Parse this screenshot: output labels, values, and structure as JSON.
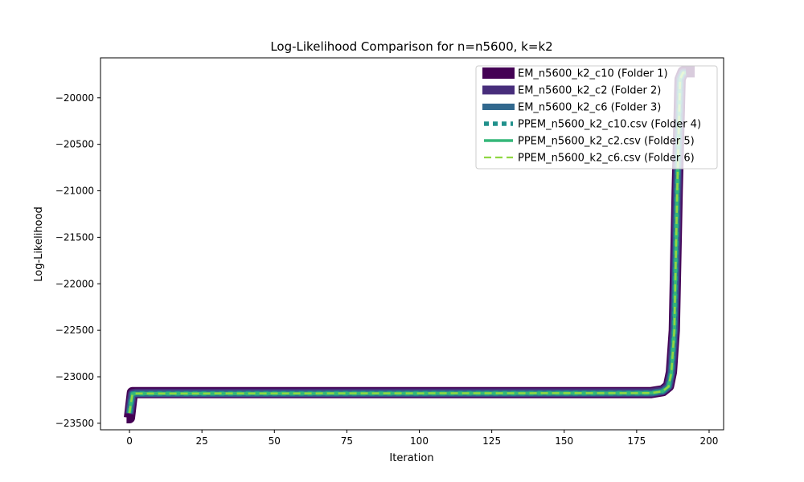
{
  "chart_data": {
    "type": "line",
    "title": "Log-Likelihood Comparison for n=n5600, k=k2",
    "xlabel": "Iteration",
    "ylabel": "Log-Likelihood",
    "xlim": [
      -10,
      205
    ],
    "ylim": [
      -23570,
      -19570
    ],
    "x_ticks": [
      0,
      25,
      50,
      75,
      100,
      125,
      150,
      175,
      200
    ],
    "x_tick_labels": [
      "0",
      "25",
      "50",
      "75",
      "100",
      "125",
      "150",
      "175",
      "200"
    ],
    "y_ticks": [
      -20000,
      -20500,
      -21000,
      -21500,
      -22000,
      -22500,
      -23000,
      -23500
    ],
    "y_tick_labels": [
      "−20000",
      "−20500",
      "−21000",
      "−21500",
      "−22000",
      "−22500",
      "−23000",
      "−23500"
    ],
    "legend_position": "top-right",
    "series": [
      {
        "name": "EM_n5600_k2_c10 (Folder 1)",
        "color": "#440154",
        "style": "solid",
        "weight": 14,
        "x": [
          -1,
          0,
          1,
          2,
          180,
          184,
          186,
          187,
          188,
          189,
          190,
          191,
          192,
          195
        ],
        "y": [
          -23440,
          -23440,
          -23170,
          -23170,
          -23170,
          -23150,
          -23100,
          -22950,
          -22500,
          -21000,
          -19800,
          -19720,
          -19720,
          -19720
        ]
      },
      {
        "name": "EM_n5600_k2_c2 (Folder 2)",
        "color": "#472d7b",
        "style": "solid",
        "weight": 11,
        "x": [
          0,
          1,
          2,
          180,
          184,
          186,
          187,
          188,
          189,
          190,
          191,
          192
        ],
        "y": [
          -23400,
          -23180,
          -23175,
          -23170,
          -23150,
          -23100,
          -22950,
          -22500,
          -21000,
          -19800,
          -19730,
          -19730
        ]
      },
      {
        "name": "EM_n5600_k2_c6 (Folder 3)",
        "color": "#31688e",
        "style": "solid",
        "weight": 8,
        "x": [
          0,
          1,
          2,
          180,
          184,
          186,
          187,
          188,
          189,
          190,
          191,
          192
        ],
        "y": [
          -23390,
          -23185,
          -23180,
          -23175,
          -23155,
          -23105,
          -22955,
          -22500,
          -21000,
          -19800,
          -19730,
          -19730
        ]
      },
      {
        "name": "PPEM_n5600_k2_c10.csv (Folder 4)",
        "color": "#21918c",
        "style": "dotted",
        "weight": 6,
        "x": [
          0,
          1,
          2,
          180,
          184,
          186,
          187,
          188,
          189,
          190,
          191,
          192
        ],
        "y": [
          -23390,
          -23185,
          -23180,
          -23175,
          -23155,
          -23105,
          -22955,
          -22500,
          -21000,
          -19800,
          -19730,
          -19730
        ]
      },
      {
        "name": "PPEM_n5600_k2_c2.csv (Folder 5)",
        "color": "#35b779",
        "style": "solid",
        "weight": 4,
        "x": [
          0,
          1,
          2,
          180,
          184,
          186,
          187,
          188,
          189,
          190,
          191,
          192
        ],
        "y": [
          -23390,
          -23185,
          -23180,
          -23175,
          -23155,
          -23105,
          -22955,
          -22500,
          -21000,
          -19800,
          -19730,
          -19730
        ]
      },
      {
        "name": "PPEM_n5600_k2_c6.csv (Folder 6)",
        "color": "#90d743",
        "style": "dashed",
        "weight": 2.5,
        "x": [
          0,
          1,
          2,
          180,
          184,
          186,
          187,
          188,
          189,
          190,
          191,
          192
        ],
        "y": [
          -23390,
          -23185,
          -23180,
          -23175,
          -23155,
          -23105,
          -22955,
          -22500,
          -21000,
          -19800,
          -19730,
          -19730
        ]
      }
    ]
  }
}
